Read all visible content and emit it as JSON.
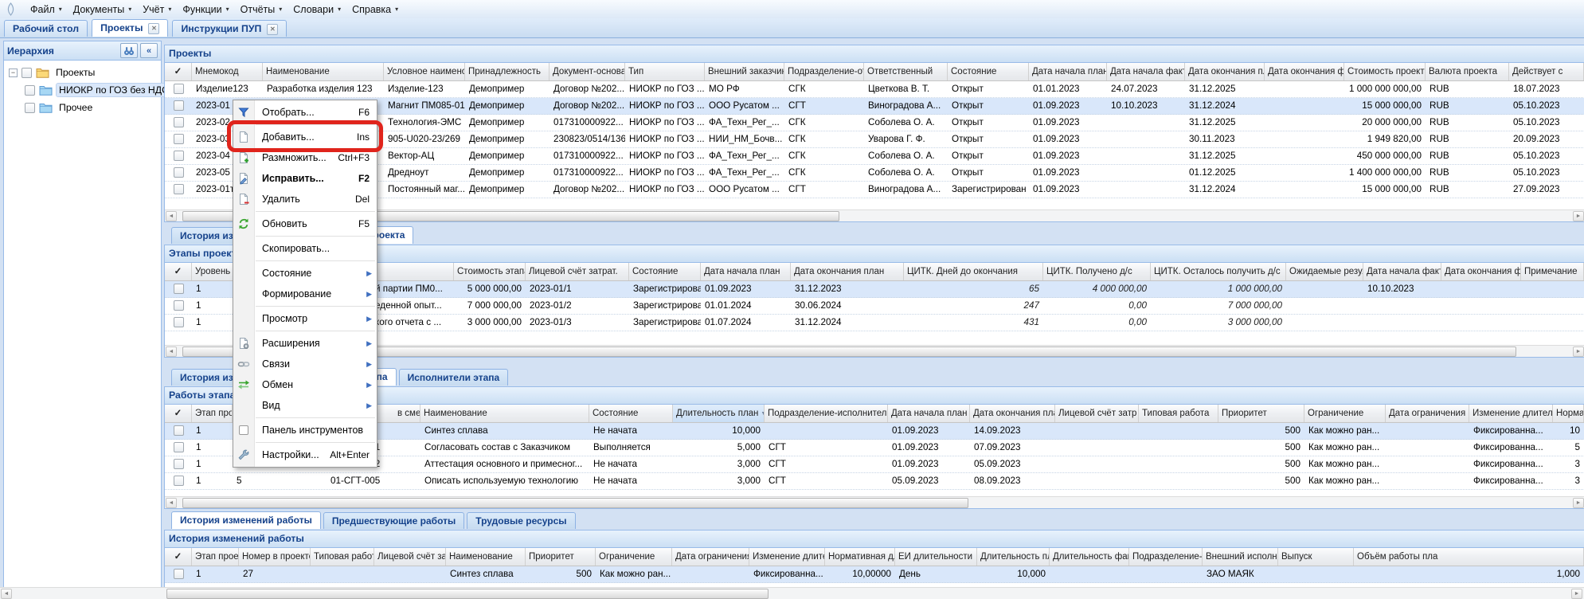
{
  "window": {
    "menubar": [
      "Файл",
      "Документы",
      "Учёт",
      "Функции",
      "Отчёты",
      "Словари",
      "Справка"
    ],
    "tabs": [
      {
        "label": "Рабочий стол",
        "active": false,
        "closable": false
      },
      {
        "label": "Проекты",
        "active": true,
        "closable": true
      },
      {
        "label": "Инструкции ПУП",
        "active": false,
        "closable": true
      }
    ]
  },
  "sidebar": {
    "title": "Иерархия",
    "buttons": [
      {
        "icon": "binoculars-icon"
      },
      {
        "icon": "collapse-icon",
        "glyph": "«"
      }
    ],
    "tree": [
      {
        "label": "Проекты",
        "level": 0,
        "expander": "−",
        "folder": "root",
        "selected": false
      },
      {
        "label": "НИОКР по ГОЗ без НДС",
        "level": 1,
        "folder": "child",
        "selected": true
      },
      {
        "label": "Прочее",
        "level": 1,
        "folder": "child",
        "selected": false
      }
    ]
  },
  "section_tabs": {
    "stages": [
      {
        "label": "История изменений проекта",
        "active": false
      },
      {
        "label": "Этапы проекта",
        "active": true
      }
    ],
    "works": [
      {
        "label": "История изменений этапа",
        "active": false
      },
      {
        "label": "Работы этапа",
        "active": true
      },
      {
        "label": "Исполнители этапа",
        "active": false
      }
    ],
    "history": [
      {
        "label": "История изменений работы",
        "active": true
      },
      {
        "label": "Предшествующие работы",
        "active": false
      },
      {
        "label": "Трудовые ресурсы",
        "active": false
      }
    ]
  },
  "grids": {
    "projects": {
      "caption": "Проекты",
      "columns": [
        "✓",
        "Мнемокод",
        "Наименование",
        "Условное наименова",
        "Принадлежность",
        "Документ-основан",
        "Тип",
        "Внешний заказчик",
        "Подразделение-от",
        "Ответственный",
        "Состояние",
        "Дата начала план.",
        "Дата начала факт.",
        "Дата окончания пл",
        "Дата окончания ф",
        "Стоимость проекта",
        "Валюта проекта",
        "Действует с"
      ],
      "rows": [
        [
          "Изделие123",
          "Разработка изделия 123",
          "Изделие-123",
          "Демопример",
          "Договор №202...",
          "НИОКР по ГОЗ ...",
          "МО РФ",
          "СГК",
          "Цветкова В. Т.",
          "Открыт",
          "01.01.2023",
          "24.07.2023",
          "31.12.2025",
          "",
          "1 000 000 000,00",
          "RUB",
          "18.07.2023"
        ],
        [
          "2023-01",
          "",
          "Магнит ПМ085-01",
          "Демопример",
          "Договор №202...",
          "НИОКР по ГОЗ ...",
          "ООО Русатом ...",
          "СГТ",
          "Виноградова А...",
          "Открыт",
          "01.09.2023",
          "10.10.2023",
          "31.12.2024",
          "",
          "15 000 000,00",
          "RUB",
          "05.10.2023"
        ],
        [
          "2023-02",
          "",
          "Технология-ЭМС",
          "Демопример",
          "017310000922...",
          "НИОКР по ГОЗ ...",
          "ФА_Техн_Рег_...",
          "СГК",
          "Соболева О. А.",
          "Открыт",
          "01.09.2023",
          "",
          "31.12.2025",
          "",
          "20 000 000,00",
          "RUB",
          "05.10.2023"
        ],
        [
          "2023-03",
          "",
          "905-U020-23/269",
          "Демопример",
          "230823/0514/136",
          "НИОКР по ГОЗ ...",
          "НИИ_НМ_Бочв...",
          "СГК",
          "Уварова Г. Ф.",
          "Открыт",
          "01.09.2023",
          "",
          "30.11.2023",
          "",
          "1 949 820,00",
          "RUB",
          "20.09.2023"
        ],
        [
          "2023-04",
          "",
          "Вектор-АЦ",
          "Демопример",
          "017310000922...",
          "НИОКР по ГОЗ ...",
          "ФА_Техн_Рег_...",
          "СГК",
          "Соболева О. А.",
          "Открыт",
          "01.09.2023",
          "",
          "31.12.2025",
          "",
          "450 000 000,00",
          "RUB",
          "05.10.2023"
        ],
        [
          "2023-05",
          "",
          "Дредноут",
          "Демопример",
          "017310000922...",
          "НИОКР по ГОЗ ...",
          "ФА_Техн_Рег_...",
          "СГК",
          "Соболева О. А.",
          "Открыт",
          "01.09.2023",
          "",
          "01.12.2025",
          "",
          "1 400 000 000,00",
          "RUB",
          "05.10.2023"
        ],
        [
          "2023-01т",
          "",
          "Постоянный маг...",
          "Демопример",
          "Договор №202...",
          "НИОКР по ГОЗ ...",
          "ООО Русатом ...",
          "СГТ",
          "Виноградова А...",
          "Зарегистрирован",
          "01.09.2023",
          "",
          "31.12.2024",
          "",
          "15 000 000,00",
          "RUB",
          "27.09.2023"
        ]
      ]
    },
    "stages": {
      "caption": "Этапы проекта",
      "columns": [
        "✓",
        "Уровень",
        "",
        "",
        "Стоимость этапа",
        "Лицевой счёт затрат.",
        "Состояние",
        "Дата начала план",
        "Дата окончания план",
        "ЦИТК. Дней до окончания",
        "ЦИТК. Получено д/с",
        "ЦИТК. Осталось получить д/с",
        "Ожидаемые резул",
        "Дата начала факт.",
        "Дата окончания ф",
        "Примечание"
      ],
      "rows": [
        [
          "1",
          "",
          "й партии ПМ0...",
          "5 000 000,00",
          "2023-01/1",
          "Зарегистрирован",
          "01.09.2023",
          "31.12.2023",
          "65",
          "4 000 000,00",
          "1 000 000,00",
          "",
          "10.10.2023",
          "",
          ""
        ],
        [
          "1",
          "",
          "еденной опыт...",
          "7 000 000,00",
          "2023-01/2",
          "Зарегистрирован",
          "01.01.2024",
          "30.06.2024",
          "247",
          "0,00",
          "7 000 000,00",
          "",
          "",
          "",
          ""
        ],
        [
          "1",
          "",
          "кого отчета с ...",
          "3 000 000,00",
          "2023-01/3",
          "Зарегистрирован",
          "01.07.2024",
          "31.12.2024",
          "431",
          "0,00",
          "3 000 000,00",
          "",
          "",
          "",
          ""
        ]
      ]
    },
    "works": {
      "caption": "Работы этапа",
      "columns": [
        "✓",
        "Этап проекта",
        "",
        "в смете",
        "Наименование",
        "Состояние",
        "Длительность план",
        "Подразделение-исполнитель..",
        "Дата начала план",
        "Дата окончания план",
        "Лицевой счёт затр",
        "Типовая работа",
        "Приоритет",
        "Ограничение",
        "Дата ограничения",
        "Изменение длител",
        "Нормативная длит"
      ],
      "rows": [
        [
          "1",
          "",
          "",
          "Синтез сплава",
          "Не начата",
          "10,000",
          "",
          "01.09.2023",
          "14.09.2023",
          "",
          "",
          "500",
          "Как можно ран...",
          "",
          "Фиксированна...",
          "10"
        ],
        [
          "1",
          "",
          "01-СГТ-001",
          "Согласовать состав с Заказчиком",
          "Выполняется",
          "5,000",
          "СГТ",
          "01.09.2023",
          "07.09.2023",
          "",
          "",
          "500",
          "Как можно ран...",
          "",
          "Фиксированна...",
          "5"
        ],
        [
          "1",
          "2",
          "01-СГТ-002",
          "Аттестация основного и примесног...",
          "Не начата",
          "3,000",
          "СГТ",
          "01.09.2023",
          "05.09.2023",
          "",
          "",
          "500",
          "Как можно ран...",
          "",
          "Фиксированна...",
          "3"
        ],
        [
          "1",
          "5",
          "01-СГТ-005",
          "Описать используемую технологию",
          "Не начата",
          "3,000",
          "СГТ",
          "05.09.2023",
          "08.09.2023",
          "",
          "",
          "500",
          "Как можно ран...",
          "",
          "Фиксированна...",
          "3"
        ]
      ]
    },
    "history": {
      "caption": "История изменений работы",
      "columns": [
        "✓",
        "Этап проекта",
        "Номер в проекте",
        "Типовая работа",
        "Лицевой счёт затр",
        "Наименование",
        "Приоритет",
        "Ограничение",
        "Дата ограничения",
        "Изменение длител",
        "Нормативная длит",
        "ЕИ длительности",
        "Длительность пла",
        "Длительность фак",
        "Подразделение-ис",
        "Внешний исполни",
        "Выпуск",
        "Объём работы пла"
      ],
      "rows": [
        [
          "1",
          "27",
          "",
          "",
          "Синтез сплава",
          "500",
          "Как можно ран...",
          "",
          "Фиксированна...",
          "10,00000",
          "День",
          "10,000",
          "",
          "",
          "ЗАО МАЯК",
          "",
          "1,000"
        ]
      ]
    }
  },
  "context_menu": {
    "items": [
      {
        "label": "Отобрать...",
        "shortcut": "F6",
        "icon": "filter-icon"
      },
      {
        "sep": true
      },
      {
        "label": "Добавить...",
        "shortcut": "Ins",
        "icon": "add-icon",
        "highlighted": true
      },
      {
        "label": "Размножить...",
        "shortcut": "Ctrl+F3",
        "icon": "duplicate-icon"
      },
      {
        "label": "Исправить...",
        "shortcut": "F2",
        "icon": "edit-icon",
        "bold": true
      },
      {
        "label": "Удалить",
        "shortcut": "Del",
        "icon": "delete-icon"
      },
      {
        "sep": true
      },
      {
        "label": "Обновить",
        "shortcut": "F5",
        "icon": "refresh-icon"
      },
      {
        "sep": true
      },
      {
        "label": "Скопировать..."
      },
      {
        "sep": true
      },
      {
        "label": "Состояние",
        "submenu": true
      },
      {
        "label": "Формирование",
        "submenu": true
      },
      {
        "sep": true
      },
      {
        "label": "Просмотр",
        "submenu": true
      },
      {
        "sep": true
      },
      {
        "label": "Расширения",
        "submenu": true,
        "icon": "extensions-icon"
      },
      {
        "label": "Связи",
        "submenu": true,
        "icon": "links-icon"
      },
      {
        "label": "Обмен",
        "submenu": true,
        "icon": "exchange-icon"
      },
      {
        "label": "Вид",
        "submenu": true
      },
      {
        "sep": true
      },
      {
        "label": "Панель инструментов",
        "icon": "checkbox-icon"
      },
      {
        "sep": true
      },
      {
        "label": "Настройки...",
        "shortcut": "Alt+Enter",
        "icon": "settings-icon"
      }
    ]
  },
  "colors": {
    "accent": "#15428b",
    "selection": "#d9e7fa",
    "highlight": "#e0241c",
    "panel_border": "#99bbe8"
  }
}
